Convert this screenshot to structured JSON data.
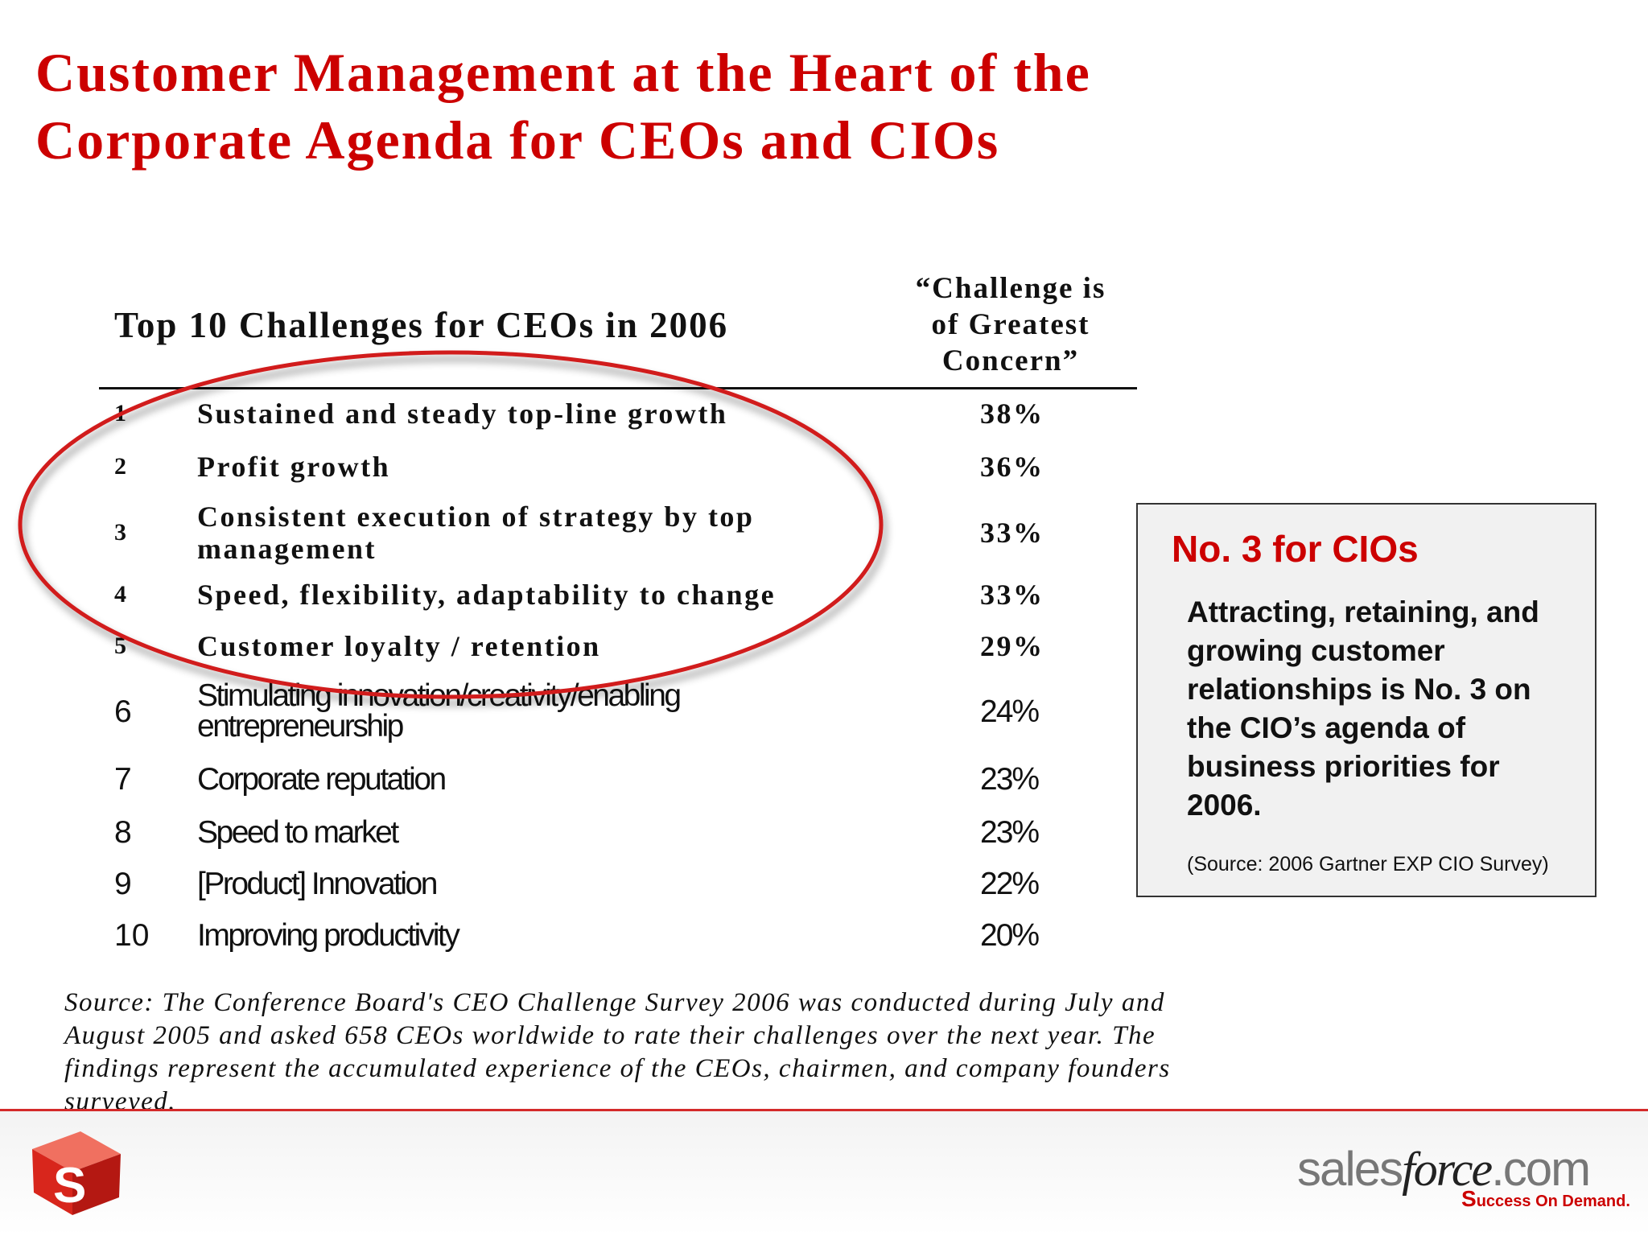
{
  "title_line1": "Customer Management at the Heart of the",
  "title_line2": "Corporate Agenda for CEOs and CIOs",
  "table": {
    "title": "Top 10 Challenges for CEOs in 2006",
    "col_header_line1": "“Challenge is",
    "col_header_line2": "of Greatest",
    "col_header_line3": "Concern”",
    "rows": [
      {
        "rank": "1",
        "label": "Sustained and steady top-line growth",
        "pct": "38%"
      },
      {
        "rank": "2",
        "label": "Profit growth",
        "pct": "36%"
      },
      {
        "rank": "3",
        "label": "Consistent execution of strategy by top",
        "label2": "management",
        "pct": "33%"
      },
      {
        "rank": "4",
        "label": "Speed, flexibility, adaptability to change",
        "pct": "33%"
      },
      {
        "rank": "5",
        "label": "Customer loyalty / retention",
        "pct": "29%"
      },
      {
        "rank": "6",
        "label": "Stimulating innovation/creativity/enabling",
        "label2": "entrepreneurship",
        "pct": "24%"
      },
      {
        "rank": "7",
        "label": "Corporate reputation",
        "pct": "23%"
      },
      {
        "rank": "8",
        "label": "Speed to market",
        "pct": "23%"
      },
      {
        "rank": "9",
        "label": "[Product] Innovation",
        "pct": "22%"
      },
      {
        "rank": "10",
        "label": "Improving productivity",
        "pct": "20%"
      }
    ]
  },
  "sidebar": {
    "heading": "No. 3 for CIOs",
    "text": "Attracting, retaining, and growing customer relationships is No. 3 on the CIO’s agenda of business priorities for 2006.",
    "source": "(Source: 2006 Gartner EXP CIO Survey)"
  },
  "footnote": "Source: The Conference Board's CEO Challenge Survey 2006 was conducted during July and August 2005 and asked  658 CEOs worldwide to rate their challenges over the next year. The findings represent the accumulated experience of the CEOs, chairmen, and company founders surveyed.",
  "logo": {
    "cube_letter": "S",
    "brand_part1": "sales",
    "brand_part2": "force",
    "brand_part3": ".com",
    "tagline": "uccess On Demand.",
    "tagline_mark": "S"
  },
  "colors": {
    "accent": "#cc0000",
    "text": "#111111"
  }
}
